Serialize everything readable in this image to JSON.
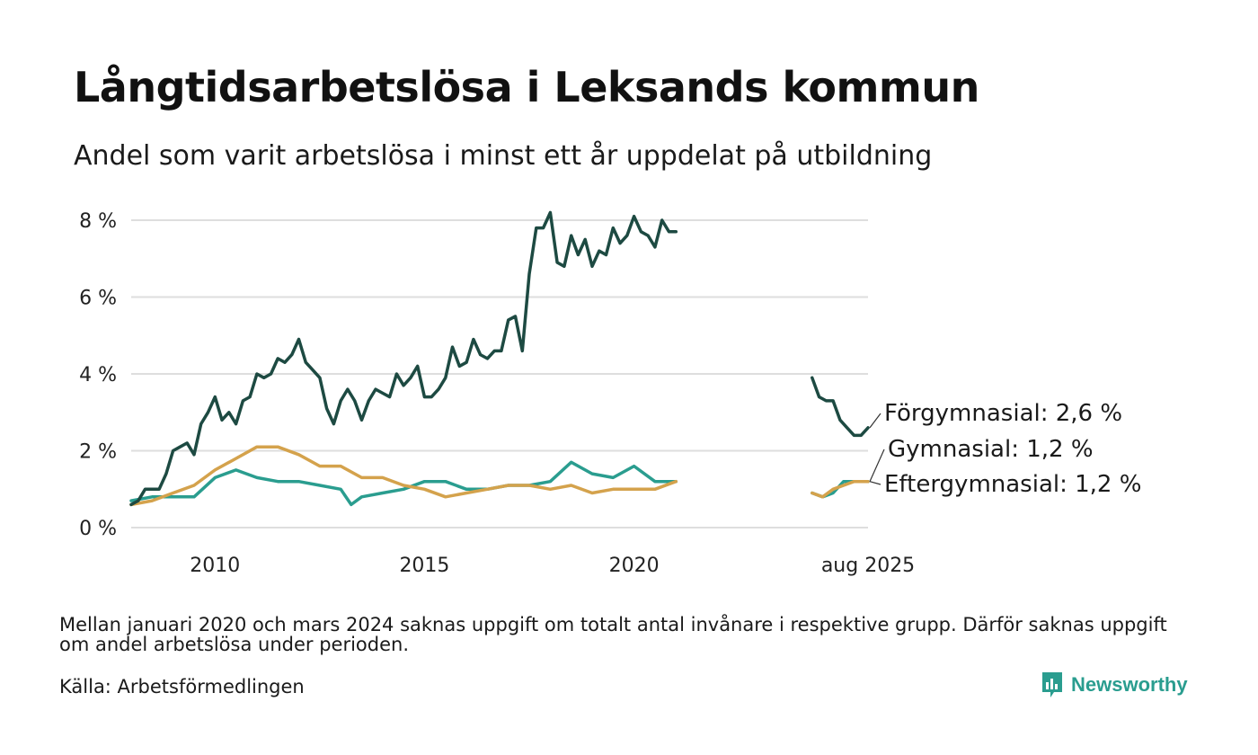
{
  "title": "Långtidsarbetslösa i Leksands kommun",
  "subtitle": "Andel som varit arbetslösa i minst ett år uppdelat på utbildning",
  "note": "Mellan januari 2020 och mars 2024 saknas uppgift om totalt antal invånare i respektive grupp. Därför saknas uppgift om andel arbetslösa under perioden.",
  "source": "Källa: Arbetsförmedlingen",
  "brand": "Newsworthy",
  "chart_data": {
    "type": "line",
    "x_type": "date",
    "xlim": [
      "2008-01",
      "2025-08"
    ],
    "ylim": [
      0,
      8
    ],
    "y_ticks": [
      0,
      2,
      4,
      6,
      8
    ],
    "y_tick_labels": [
      "0 %",
      "2 %",
      "4 %",
      "6 %",
      "8 %"
    ],
    "x_ticks": [
      "2010-01",
      "2015-01",
      "2020-01",
      "2025-08"
    ],
    "x_tick_labels": [
      "2010",
      "2015",
      "2020",
      "aug 2025"
    ],
    "grid": true,
    "series": [
      {
        "name": "Förgymnasial",
        "color": "#1d4a42",
        "end_label": "Förgymnasial: 2,6 %",
        "segments": [
          {
            "x": [
              "2008-01",
              "2008-03",
              "2008-05",
              "2008-07",
              "2008-09",
              "2008-11",
              "2009-01",
              "2009-03",
              "2009-05",
              "2009-07",
              "2009-09",
              "2009-11",
              "2010-01",
              "2010-03",
              "2010-05",
              "2010-07",
              "2010-09",
              "2010-11",
              "2011-01",
              "2011-03",
              "2011-05",
              "2011-07",
              "2011-09",
              "2011-11",
              "2012-01",
              "2012-03",
              "2012-05",
              "2012-07",
              "2012-09",
              "2012-11",
              "2013-01",
              "2013-03",
              "2013-05",
              "2013-07",
              "2013-09",
              "2013-11",
              "2014-01",
              "2014-03",
              "2014-05",
              "2014-07",
              "2014-09",
              "2014-11",
              "2015-01",
              "2015-03",
              "2015-05",
              "2015-07",
              "2015-09",
              "2015-11",
              "2016-01",
              "2016-03",
              "2016-05",
              "2016-07",
              "2016-09",
              "2016-11",
              "2017-01",
              "2017-03",
              "2017-05",
              "2017-07",
              "2017-09",
              "2017-11",
              "2018-01",
              "2018-03",
              "2018-05",
              "2018-07",
              "2018-09",
              "2018-11",
              "2019-01",
              "2019-03",
              "2019-05",
              "2019-07",
              "2019-09",
              "2019-11",
              "2020-01",
              "2020-03",
              "2020-05",
              "2020-07",
              "2020-09",
              "2020-11",
              "2021-01"
            ],
            "values": [
              0.6,
              0.7,
              1.0,
              1.0,
              1.0,
              1.4,
              2.0,
              2.1,
              2.2,
              1.9,
              2.7,
              3.0,
              3.4,
              2.8,
              3.0,
              2.7,
              3.3,
              3.4,
              4.0,
              3.9,
              4.0,
              4.4,
              4.3,
              4.5,
              4.9,
              4.3,
              4.1,
              3.9,
              3.1,
              2.7,
              3.3,
              3.6,
              3.3,
              2.8,
              3.3,
              3.6,
              3.5,
              3.4,
              4.0,
              3.7,
              3.9,
              4.2,
              3.4,
              3.4,
              3.6,
              3.9,
              4.7,
              4.2,
              4.3,
              4.9,
              4.5,
              4.4,
              4.6,
              4.6,
              5.4,
              5.5,
              4.6,
              6.6,
              7.8,
              7.8,
              8.2,
              6.9,
              6.8,
              7.6,
              7.1,
              7.5,
              6.8,
              7.2,
              7.1,
              7.8,
              7.4,
              7.6,
              8.1,
              7.7,
              7.6,
              7.3,
              8.0,
              7.7,
              7.7
            ]
          },
          {
            "x": [
              "2024-04",
              "2024-06",
              "2024-08",
              "2024-10",
              "2024-12",
              "2025-02",
              "2025-04",
              "2025-06",
              "2025-08"
            ],
            "values": [
              3.9,
              3.4,
              3.3,
              3.3,
              2.8,
              2.6,
              2.4,
              2.4,
              2.6
            ]
          }
        ]
      },
      {
        "name": "Gymnasial",
        "color": "#2a9d8f",
        "end_label": "Gymnasial: 1,2 %",
        "segments": [
          {
            "x": [
              "2008-01",
              "2008-07",
              "2009-01",
              "2009-07",
              "2010-01",
              "2010-07",
              "2011-01",
              "2011-07",
              "2012-01",
              "2012-07",
              "2013-01",
              "2013-04",
              "2013-07",
              "2014-01",
              "2014-07",
              "2015-01",
              "2015-07",
              "2016-01",
              "2016-07",
              "2017-01",
              "2017-07",
              "2018-01",
              "2018-07",
              "2019-01",
              "2019-07",
              "2020-01",
              "2020-07",
              "2021-01"
            ],
            "values": [
              0.7,
              0.8,
              0.8,
              0.8,
              1.3,
              1.5,
              1.3,
              1.2,
              1.2,
              1.1,
              1.0,
              0.6,
              0.8,
              0.9,
              1.0,
              1.2,
              1.2,
              1.0,
              1.0,
              1.1,
              1.1,
              1.2,
              1.7,
              1.4,
              1.3,
              1.6,
              1.2,
              1.2
            ]
          },
          {
            "x": [
              "2024-04",
              "2024-07",
              "2024-10",
              "2025-01",
              "2025-04",
              "2025-08"
            ],
            "values": [
              0.9,
              0.8,
              0.9,
              1.2,
              1.2,
              1.2
            ]
          }
        ]
      },
      {
        "name": "Eftergymnasial",
        "color": "#d4a24c",
        "end_label": "Eftergymnasial: 1,2 %",
        "segments": [
          {
            "x": [
              "2008-01",
              "2008-07",
              "2009-01",
              "2009-07",
              "2010-01",
              "2010-07",
              "2011-01",
              "2011-07",
              "2012-01",
              "2012-07",
              "2013-01",
              "2013-07",
              "2014-01",
              "2014-07",
              "2015-01",
              "2015-07",
              "2016-01",
              "2016-07",
              "2017-01",
              "2017-07",
              "2018-01",
              "2018-07",
              "2019-01",
              "2019-07",
              "2020-01",
              "2020-07",
              "2021-01"
            ],
            "values": [
              0.6,
              0.7,
              0.9,
              1.1,
              1.5,
              1.8,
              2.1,
              2.1,
              1.9,
              1.6,
              1.6,
              1.3,
              1.3,
              1.1,
              1.0,
              0.8,
              0.9,
              1.0,
              1.1,
              1.1,
              1.0,
              1.1,
              0.9,
              1.0,
              1.0,
              1.0,
              1.2
            ]
          },
          {
            "x": [
              "2024-04",
              "2024-07",
              "2024-10",
              "2025-01",
              "2025-04",
              "2025-08"
            ],
            "values": [
              0.9,
              0.8,
              1.0,
              1.1,
              1.2,
              1.2
            ]
          }
        ]
      }
    ]
  }
}
